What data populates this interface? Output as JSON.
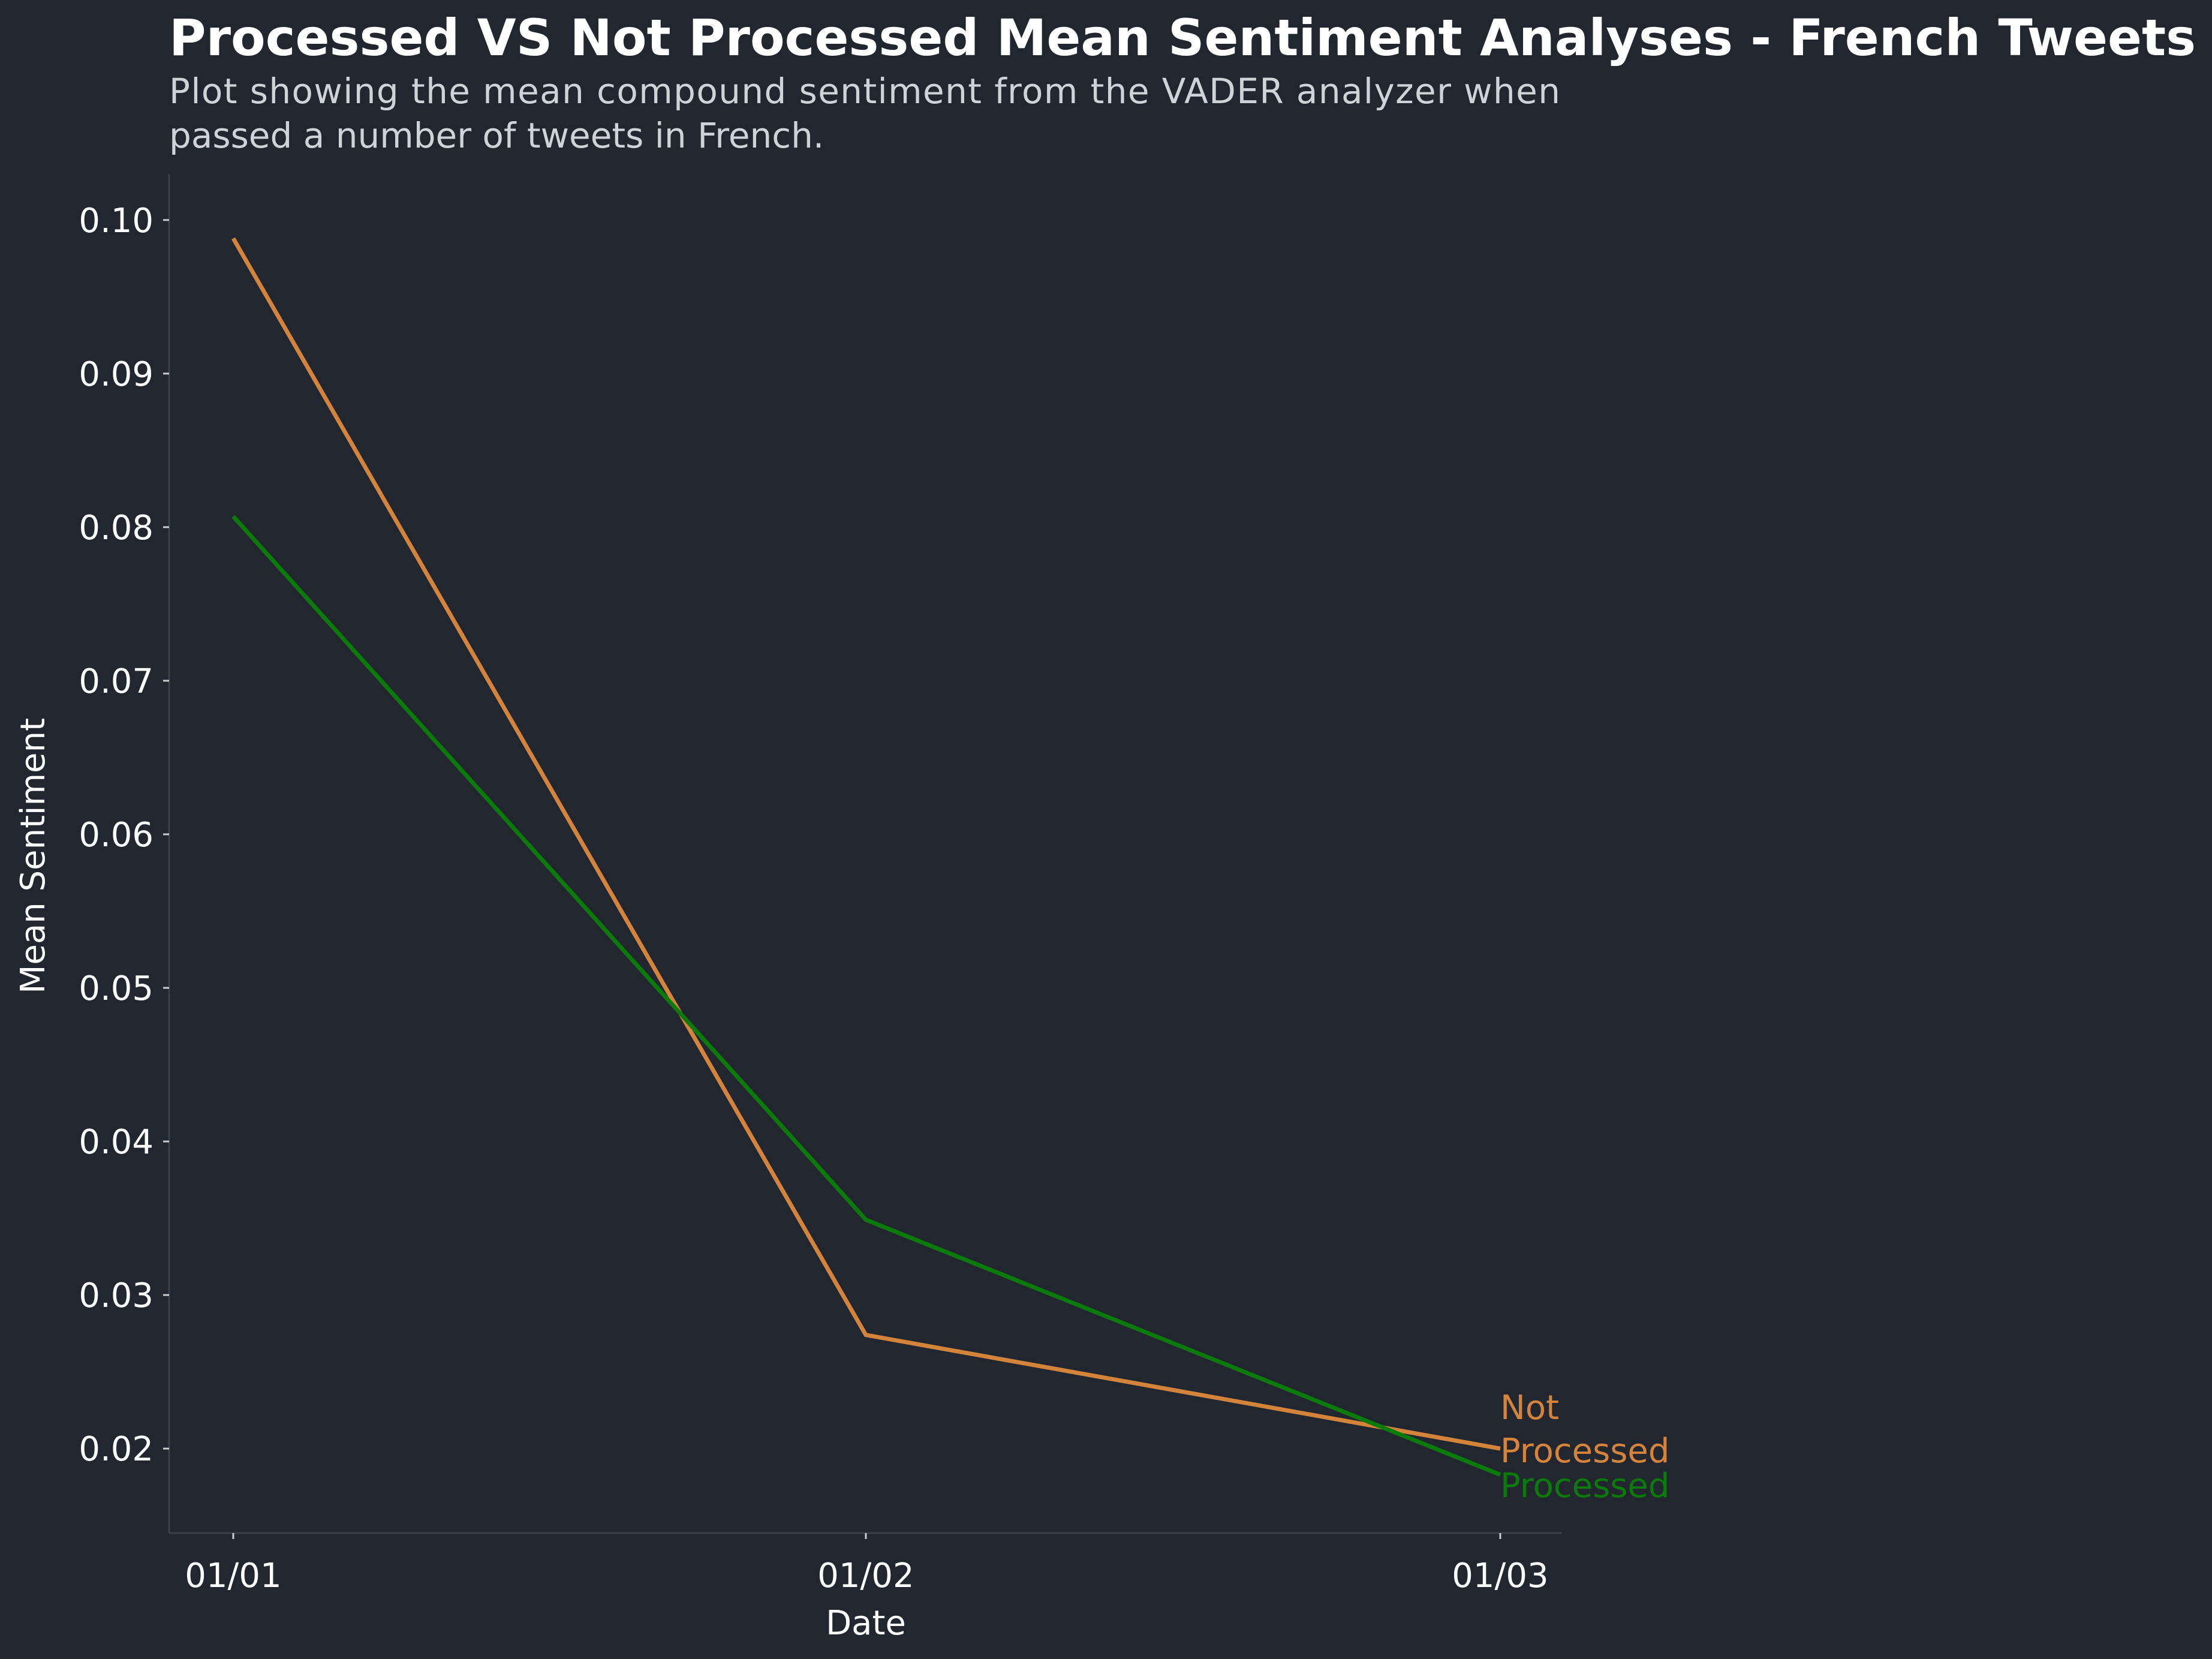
{
  "chart_data": {
    "type": "line",
    "title": "Processed VS Not Processed Mean Sentiment Analyses - French Tweets",
    "subtitle_lines": [
      "Plot showing the mean compound sentiment from the VADER analyzer when",
      "passed a number of tweets in French."
    ],
    "xlabel": "Date",
    "ylabel": "Mean Sentiment",
    "x": [
      "01/01",
      "01/02",
      "01/03"
    ],
    "ylim": [
      0.0145,
      0.103
    ],
    "yticks": [
      "0.02",
      "0.03",
      "0.04",
      "0.05",
      "0.06",
      "0.07",
      "0.08",
      "0.09",
      "0.10"
    ],
    "grid": false,
    "legend": "inline labels at line ends",
    "series": [
      {
        "label_lines": [
          "Not",
          "Processed"
        ],
        "color": "#d4833a",
        "values": [
          0.0988,
          0.0274,
          0.02
        ]
      },
      {
        "label_lines": [
          "Processed"
        ],
        "color": "#0a7a0a",
        "values": [
          0.0807,
          0.0349,
          0.0183
        ]
      }
    ],
    "colors": {
      "background": "#22272f",
      "axis": "#3a4049",
      "text": "#ffffff",
      "subtitle": "#cfd3d8"
    }
  }
}
